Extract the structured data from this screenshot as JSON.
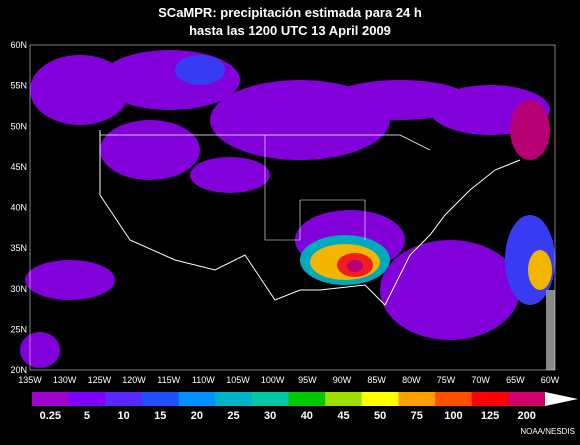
{
  "header": {
    "title_line1": "SCaMPR: precipitación estimada para 24 h",
    "title_line2": "hasta las 1200 UTC 13 April 2009"
  },
  "map": {
    "lat_labels": [
      "60N",
      "55N",
      "50N",
      "45N",
      "40N",
      "35N",
      "30N",
      "25N",
      "20N"
    ],
    "lon_labels": [
      "135W",
      "130W",
      "125W",
      "120W",
      "115W",
      "110W",
      "105W",
      "100W",
      "95W",
      "90W",
      "85W",
      "80W",
      "75W",
      "70W",
      "65W",
      "60W"
    ]
  },
  "colorbar": {
    "labels": [
      "0.25",
      "5",
      "10",
      "15",
      "20",
      "25",
      "30",
      "40",
      "45",
      "50",
      "75",
      "100",
      "125",
      "200"
    ]
  },
  "footer": {
    "credit": "NOAA/NESDIS"
  }
}
